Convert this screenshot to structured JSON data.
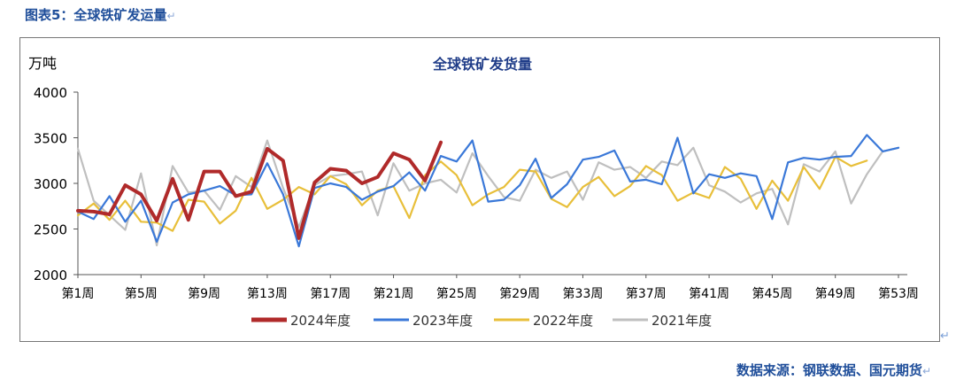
{
  "caption": "图表5：全球铁矿发运量",
  "source": "数据来源：钢联数据、国元期货",
  "return_mark": "↵",
  "chart_data": {
    "type": "line",
    "title": "全球铁矿发货量",
    "unit_label": "万吨",
    "ylim": [
      2000,
      4000
    ],
    "yticks": [
      2000,
      2500,
      3000,
      3500,
      4000
    ],
    "x_count": 53,
    "xtick_labels": [
      "第1周",
      "第5周",
      "第9周",
      "第13周",
      "第17周",
      "第21周",
      "第25周",
      "第29周",
      "第33周",
      "第37周",
      "第41周",
      "第45周",
      "第49周",
      "第53周"
    ],
    "xtick_positions": [
      1,
      5,
      9,
      13,
      17,
      21,
      25,
      29,
      33,
      37,
      41,
      45,
      49,
      53
    ],
    "grid": false,
    "legend_position": "bottom",
    "series": [
      {
        "name": "2024年度",
        "color": "#b02a2a",
        "values": [
          2700,
          2690,
          2660,
          2980,
          2880,
          2590,
          3050,
          2600,
          3130,
          3130,
          2860,
          2910,
          3380,
          3250,
          2400,
          3010,
          3160,
          3140,
          3000,
          3070,
          3330,
          3260,
          3030,
          3450
        ]
      },
      {
        "name": "2023年度",
        "color": "#3a78d8",
        "values": [
          2690,
          2610,
          2860,
          2580,
          2810,
          2360,
          2790,
          2880,
          2920,
          2970,
          2870,
          2880,
          3220,
          2880,
          2310,
          2950,
          3000,
          2960,
          2820,
          2910,
          2970,
          3120,
          2920,
          3300,
          3240,
          3470,
          2800,
          2820,
          2980,
          3270,
          2840,
          2990,
          3260,
          3290,
          3360,
          3020,
          3040,
          2990,
          3500,
          2890,
          3100,
          3060,
          3110,
          3080,
          2610,
          3230,
          3280,
          3260,
          3290,
          3300,
          3530,
          3350,
          3390
        ]
      },
      {
        "name": "2022年度",
        "color": "#e8bf3a",
        "values": [
          2650,
          2780,
          2600,
          2810,
          2580,
          2570,
          2480,
          2820,
          2800,
          2560,
          2700,
          3060,
          2720,
          2820,
          2960,
          2880,
          3080,
          2990,
          2760,
          2920,
          2970,
          2620,
          3090,
          3240,
          3090,
          2760,
          2880,
          2960,
          3150,
          3130,
          2830,
          2740,
          2960,
          3070,
          2860,
          2970,
          3190,
          3090,
          2810,
          2900,
          2840,
          3180,
          3050,
          2720,
          3030,
          2810,
          3180,
          2940,
          3290,
          3190,
          3250
        ]
      },
      {
        "name": "2021年度",
        "color": "#bfbfbf",
        "values": [
          3380,
          2810,
          2650,
          2490,
          3110,
          2320,
          3190,
          2900,
          2920,
          2710,
          3080,
          2960,
          3470,
          2950,
          2520,
          2980,
          3080,
          3100,
          3130,
          2650,
          3220,
          2920,
          3000,
          3040,
          2900,
          3330,
          3080,
          2850,
          2810,
          3150,
          3060,
          3130,
          2820,
          3230,
          3150,
          3180,
          3060,
          3240,
          3200,
          3390,
          2980,
          2910,
          2790,
          2890,
          2940,
          2550,
          3210,
          3130,
          3350,
          2780,
          3100,
          3350,
          3390
        ]
      }
    ]
  }
}
